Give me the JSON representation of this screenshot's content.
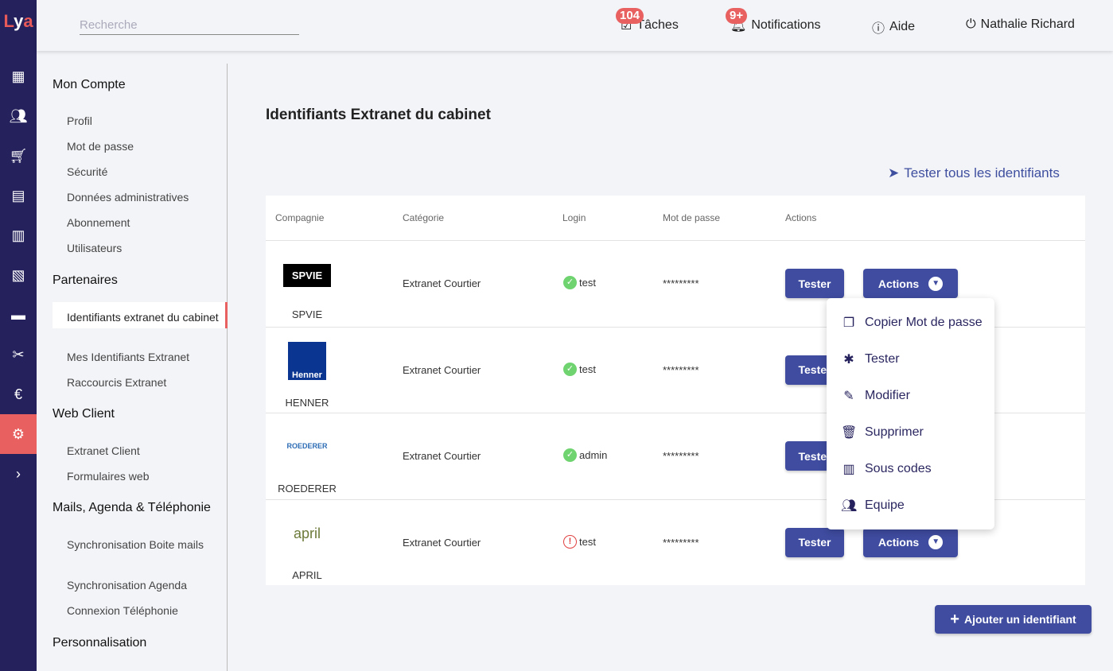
{
  "app": {
    "logo": "Lya"
  },
  "rail": {
    "icons": [
      "dashboard-icon",
      "people-icon",
      "cart-icon",
      "document-icon",
      "store-icon",
      "chart-icon",
      "chat-icon",
      "tools-icon",
      "euro-icon",
      "gear-icon",
      "chevron-right-icon"
    ],
    "active": "gear-icon",
    "accent": "#e86060",
    "bg": "#25215c"
  },
  "topbar": {
    "search_placeholder": "Recherche",
    "tasks": {
      "label": "Tâches",
      "count": "104"
    },
    "notifications": {
      "label": "Notifications",
      "count": "9+"
    },
    "help": "Aide",
    "user": "Nathalie Richard"
  },
  "sidebar": {
    "sections": [
      {
        "title": "Mon Compte",
        "items": [
          "Profil",
          "Mot de passe",
          "Sécurité",
          "Données administratives",
          "Abonnement",
          "Utilisateurs"
        ]
      },
      {
        "title": "Partenaires",
        "items": [
          "Identifiants extranet du cabinet",
          "Mes Identifiants Extranet",
          "Raccourcis Extranet"
        ]
      },
      {
        "title": "Web Client",
        "items": [
          "Extranet Client",
          "Formulaires web"
        ]
      },
      {
        "title": "Mails, Agenda & Téléphonie",
        "items": [
          "Synchronisation Boite mails",
          "Synchronisation Agenda",
          "Connexion Téléphonie"
        ]
      },
      {
        "title": "Personnalisation",
        "items": []
      }
    ]
  },
  "main": {
    "title": "Identifiants Extranet du cabinet",
    "test_all": "Tester tous les identifiants",
    "columns": [
      "Compagnie",
      "Catégorie",
      "Login",
      "Mot de passe",
      "Actions"
    ],
    "rows": [
      {
        "company": "SPVIE",
        "logo": "SPVIE",
        "category": "Extranet Courtier",
        "login": "test",
        "status": "ok",
        "password": "*********"
      },
      {
        "company": "HENNER",
        "logo": "Henner",
        "category": "Extranet Courtier",
        "login": "test",
        "status": "ok",
        "password": "*********"
      },
      {
        "company": "ROEDERER",
        "logo": "ROEDERER",
        "category": "Extranet Courtier",
        "login": "admin",
        "status": "ok",
        "password": "*********"
      },
      {
        "company": "APRIL",
        "logo": "april",
        "category": "Extranet Courtier",
        "login": "test",
        "status": "error",
        "password": "*********"
      }
    ],
    "test_label": "Tester",
    "actions_label": "Actions",
    "menu": [
      {
        "icon": "copy-icon",
        "label": "Copier Mot de passe"
      },
      {
        "icon": "bug-icon",
        "label": "Tester"
      },
      {
        "icon": "pencil-icon",
        "label": "Modifier"
      },
      {
        "icon": "trash-icon",
        "label": "Supprimer"
      },
      {
        "icon": "building-icon",
        "label": "Sous codes"
      },
      {
        "icon": "group-icon",
        "label": "Equipe"
      }
    ],
    "add_label": "Ajouter un identifiant"
  }
}
